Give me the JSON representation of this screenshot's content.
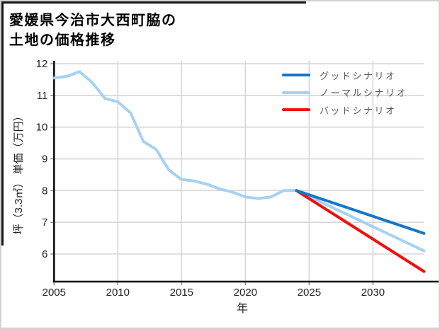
{
  "window": {
    "background": "#ffffff"
  },
  "title": {
    "line1": "愛媛県今治市大西町脇の",
    "line2": "土地の価格推移"
  },
  "axes": {
    "xlabel": "年",
    "ylabel": "坪（3.3㎡） 単価（万円）"
  },
  "legend": {
    "position": "upper right",
    "items": [
      {
        "label": "グッドシナリオ",
        "color": "#1776c8"
      },
      {
        "label": "ノーマルシナリオ",
        "color": "#a6d1f2"
      },
      {
        "label": "バッドシナリオ",
        "color": "#f20d0d"
      }
    ]
  },
  "colors": {
    "grid": "#d6d6d6",
    "spine": "#000000",
    "tick": "#8a8a8a",
    "tick_label": "#222222",
    "good": "#1776c8",
    "normal": "#a6d1f2",
    "bad": "#f20d0d"
  },
  "chart_data": {
    "type": "line",
    "title": "愛媛県今治市大西町脇の土地の価格推移",
    "xlabel": "年",
    "ylabel": "坪（3.3㎡） 単価（万円）",
    "x_ticks": [
      2005,
      2010,
      2015,
      2020,
      2025,
      2030
    ],
    "y_ticks": [
      6,
      7,
      8,
      9,
      10,
      11,
      12
    ],
    "xlim": [
      2005,
      2035.2
    ],
    "ylim": [
      5.13,
      12.09
    ],
    "grid": true,
    "legend_position": "upper right",
    "series": [
      {
        "name": "ノーマルシナリオ",
        "color": "#a6d1f2",
        "width": 4,
        "x": [
          2005,
          2006,
          2007,
          2008,
          2009,
          2010,
          2011,
          2012,
          2013,
          2014,
          2015,
          2016,
          2017,
          2018,
          2019,
          2020,
          2021,
          2022,
          2023,
          2024,
          2034
        ],
        "values": [
          11.55,
          11.6,
          11.75,
          11.4,
          10.9,
          10.8,
          10.45,
          9.55,
          9.3,
          8.65,
          8.35,
          8.3,
          8.2,
          8.05,
          7.95,
          7.8,
          7.75,
          7.8,
          8.0,
          8.0,
          6.1
        ]
      },
      {
        "name": "バッドシナリオ",
        "color": "#f20d0d",
        "width": 4,
        "x": [
          2024,
          2034
        ],
        "values": [
          8.0,
          5.45
        ]
      },
      {
        "name": "グッドシナリオ",
        "color": "#1776c8",
        "width": 4,
        "x": [
          2024,
          2034
        ],
        "values": [
          8.0,
          6.65
        ]
      }
    ]
  }
}
